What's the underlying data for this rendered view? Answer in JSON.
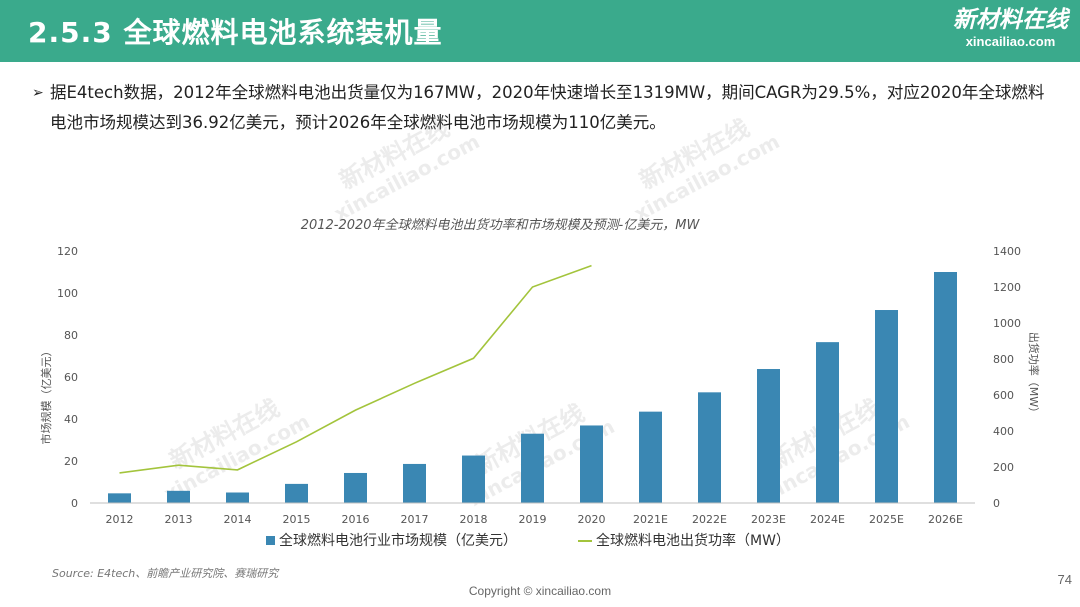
{
  "header": {
    "title": "2.5.3 全球燃料电池系统装机量"
  },
  "logo": {
    "main": "新材料在线",
    "sub": "xincailiao.com"
  },
  "bullet": {
    "arrow": "➢",
    "text": "据E4tech数据，2012年全球燃料电池出货量仅为167MW，2020年快速增长至1319MW，期间CAGR为29.5%，对应2020年全球燃料电池市场规模达到36.92亿美元，预计2026年全球燃料电池市场规模为110亿美元。"
  },
  "watermark": {
    "line1": "新材料在线",
    "line2": "xincailiao.com"
  },
  "source": "Source:  E4tech、前瞻产业研究院、赛瑞研究",
  "copyright": "Copyright © xincailiao.com",
  "page_number": "74",
  "colors": {
    "header": "#3aaa8c",
    "bar": "#3a87b3",
    "line": "#a3c43c"
  },
  "chart_data": {
    "type": "bar+line",
    "title": "2012-2020年全球燃料电池出货功率和市场规模及预测-亿美元，MW",
    "categories": [
      "2012",
      "2013",
      "2014",
      "2015",
      "2016",
      "2017",
      "2018",
      "2019",
      "2020",
      "2021E",
      "2022E",
      "2023E",
      "2024E",
      "2025E",
      "2026E"
    ],
    "ylabel_left": "市场规模（亿美元）",
    "ylabel_right": "出货功率（MW）",
    "ylim_left": [
      0,
      120
    ],
    "ylim_right": [
      0,
      1400
    ],
    "yticks_left": [
      0,
      20,
      40,
      60,
      80,
      100,
      120
    ],
    "yticks_right": [
      0,
      200,
      400,
      600,
      800,
      1000,
      1200,
      1400
    ],
    "grid": false,
    "legend_position": "bottom-center",
    "series": [
      {
        "name": "全球燃料电池行业市场规模（亿美元）",
        "type": "bar",
        "axis": "left",
        "values": [
          4.6,
          5.8,
          5.0,
          9.1,
          14.3,
          18.6,
          22.6,
          33.0,
          36.92,
          43.5,
          52.7,
          63.8,
          76.6,
          91.9,
          110
        ]
      },
      {
        "name": "全球燃料电池出货功率（MW）",
        "type": "line",
        "axis": "right",
        "values": [
          167,
          210,
          184,
          340,
          516,
          665,
          804,
          1200,
          1319,
          null,
          null,
          null,
          null,
          null,
          null
        ]
      }
    ]
  }
}
